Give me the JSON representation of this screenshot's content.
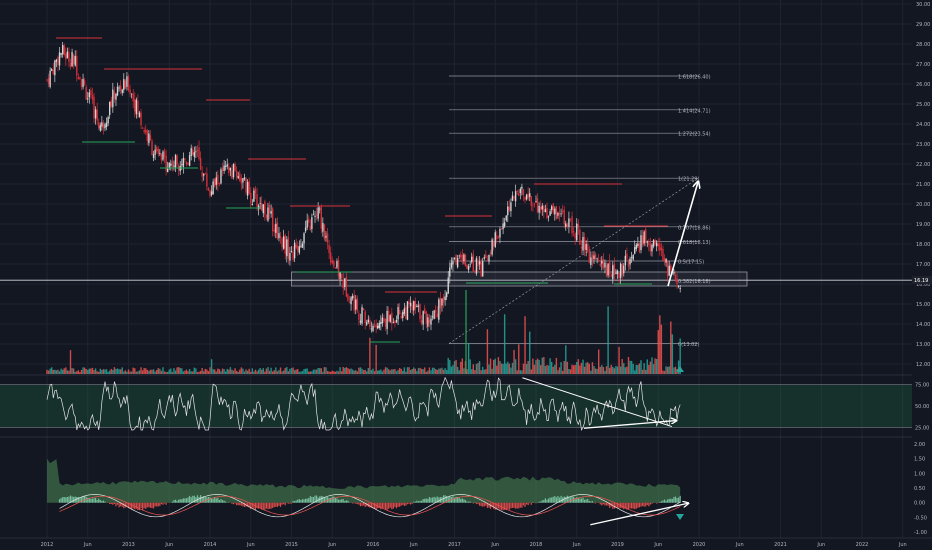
{
  "chart_data": [
    {
      "type": "candlestick",
      "panel": "price",
      "title": "",
      "colors": {
        "up": "#d4d4d4",
        "down": "#d8303a",
        "volume_up": "#26a69a",
        "volume_down": "#ef5350",
        "background": "#131722",
        "grid": "#1f2330"
      },
      "x_ticks": [
        "2012",
        "Jun",
        "2013",
        "Jun",
        "2014",
        "Jun",
        "2015",
        "Jun",
        "2016",
        "Jun",
        "2017",
        "Jun",
        "2018",
        "Jun",
        "2019",
        "Jun",
        "2020",
        "Jun",
        "2021",
        "Jun",
        "2022",
        "Jun"
      ],
      "y_ticks": [
        "30.00",
        "29.00",
        "28.00",
        "27.00",
        "26.00",
        "25.00",
        "24.00",
        "23.00",
        "22.00",
        "21.00",
        "20.00",
        "19.00",
        "18.00",
        "17.00",
        "16.00",
        "15.00",
        "14.00",
        "13.00",
        "12.00"
      ],
      "ylim": [
        11.5,
        30.2
      ],
      "last_price": "16.19",
      "price_path_monthly": [
        {
          "date": "2012-01",
          "close": 26.2
        },
        {
          "date": "2012-03",
          "close": 27.6
        },
        {
          "date": "2012-05",
          "close": 27.2
        },
        {
          "date": "2012-07",
          "close": 25.4
        },
        {
          "date": "2012-09",
          "close": 23.8
        },
        {
          "date": "2012-11",
          "close": 25.6
        },
        {
          "date": "2013-01",
          "close": 26.0
        },
        {
          "date": "2013-03",
          "close": 24.0
        },
        {
          "date": "2013-05",
          "close": 22.4
        },
        {
          "date": "2013-07",
          "close": 22.0
        },
        {
          "date": "2013-09",
          "close": 22.2
        },
        {
          "date": "2013-11",
          "close": 22.5
        },
        {
          "date": "2014-01",
          "close": 20.6
        },
        {
          "date": "2014-03",
          "close": 21.6
        },
        {
          "date": "2014-05",
          "close": 21.6
        },
        {
          "date": "2014-07",
          "close": 20.4
        },
        {
          "date": "2014-09",
          "close": 19.8
        },
        {
          "date": "2014-11",
          "close": 18.6
        },
        {
          "date": "2015-01",
          "close": 17.4
        },
        {
          "date": "2015-03",
          "close": 18.6
        },
        {
          "date": "2015-05",
          "close": 19.6
        },
        {
          "date": "2015-07",
          "close": 17.2
        },
        {
          "date": "2015-09",
          "close": 15.8
        },
        {
          "date": "2015-11",
          "close": 14.6
        },
        {
          "date": "2016-01",
          "close": 13.8
        },
        {
          "date": "2016-03",
          "close": 14.2
        },
        {
          "date": "2016-05",
          "close": 14.6
        },
        {
          "date": "2016-07",
          "close": 14.8
        },
        {
          "date": "2016-09",
          "close": 14.2
        },
        {
          "date": "2016-11",
          "close": 15.0
        },
        {
          "date": "2017-01",
          "close": 17.2
        },
        {
          "date": "2017-03",
          "close": 17.0
        },
        {
          "date": "2017-05",
          "close": 16.8
        },
        {
          "date": "2017-07",
          "close": 18.4
        },
        {
          "date": "2017-09",
          "close": 19.8
        },
        {
          "date": "2017-11",
          "close": 20.6
        },
        {
          "date": "2018-01",
          "close": 20.0
        },
        {
          "date": "2018-03",
          "close": 19.6
        },
        {
          "date": "2018-05",
          "close": 19.4
        },
        {
          "date": "2018-07",
          "close": 18.6
        },
        {
          "date": "2018-09",
          "close": 17.2
        },
        {
          "date": "2018-11",
          "close": 16.8
        },
        {
          "date": "2019-01",
          "close": 16.6
        },
        {
          "date": "2019-03",
          "close": 17.4
        },
        {
          "date": "2019-05",
          "close": 18.4
        },
        {
          "date": "2019-07",
          "close": 17.6
        },
        {
          "date": "2019-09",
          "close": 16.4
        },
        {
          "date": "2019-10",
          "close": 16.2
        }
      ],
      "fib_levels": [
        {
          "label": "1.618(26.40)",
          "value": 26.4
        },
        {
          "label": "1.414(24.71)",
          "value": 24.71
        },
        {
          "label": "1.272(23.54)",
          "value": 23.54
        },
        {
          "label": "1(21.29)",
          "value": 21.29
        },
        {
          "label": "0.707(18.86)",
          "value": 18.86
        },
        {
          "label": "0.618(18.13)",
          "value": 18.13
        },
        {
          "label": "0.5(17.15)",
          "value": 17.15
        },
        {
          "label": "0.382(16.18)",
          "value": 16.18
        },
        {
          "label": "0(13.02)",
          "value": 13.02
        }
      ],
      "support_zone": {
        "from": 15.9,
        "to": 16.6,
        "start": "2015-01"
      },
      "horizontal_line": 16.19
    },
    {
      "type": "line",
      "panel": "rsi",
      "y_ticks": [
        "75.00",
        "50.00",
        "25.00"
      ],
      "ylim": [
        15,
        85
      ],
      "band": [
        25,
        75
      ],
      "trendline": {
        "from": {
          "date": "2017-11",
          "value": 83
        },
        "to": {
          "date": "2019-09",
          "value": 26
        }
      }
    },
    {
      "type": "area",
      "panel": "macd",
      "y_ticks": [
        "2.00",
        "1.50",
        "1.00",
        "0.50",
        "0.00",
        "-0.50",
        "-1.00"
      ],
      "ylim": [
        -1.2,
        2.2
      ],
      "trendline": {
        "from": {
          "date": "2018-09",
          "value": -0.75
        },
        "to": {
          "date": "2019-11",
          "value": -0.05
        }
      }
    }
  ]
}
